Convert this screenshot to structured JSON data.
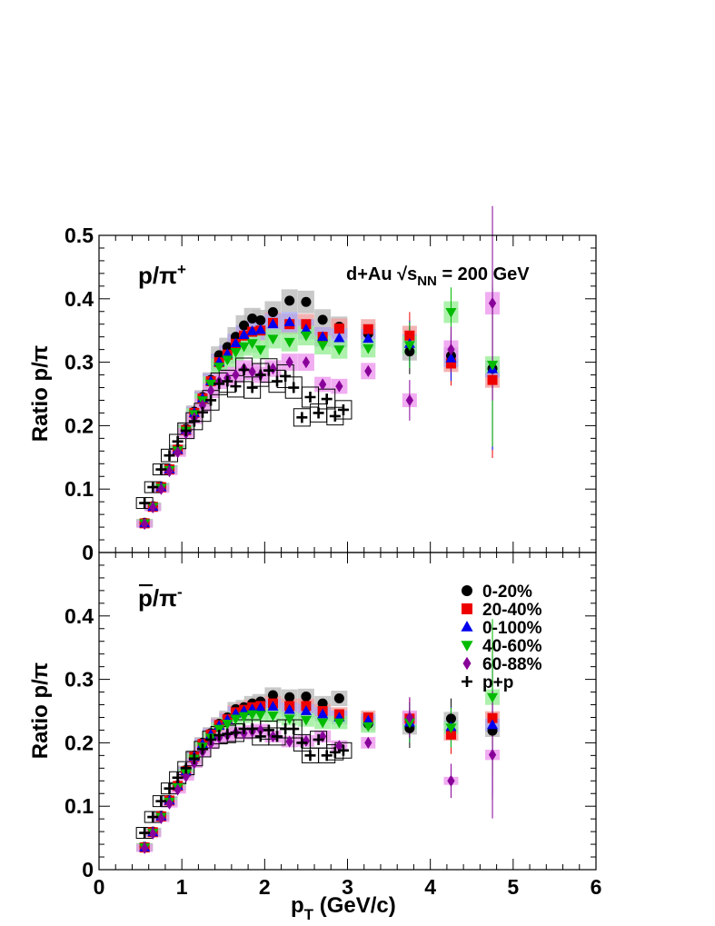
{
  "chart_data": [
    {
      "panel": "upper",
      "type": "scatter",
      "label_ratio": "p/π",
      "label_sup": "+",
      "annotation": "d+Au √s",
      "annotation_sub": "NN",
      "annotation_tail": " = 200 GeV",
      "ylabel": "Ratio p/π",
      "xlim": [
        0,
        6
      ],
      "ylim": [
        0,
        0.5
      ],
      "yticks": [
        "0",
        "0.1",
        "0.2",
        "0.3",
        "0.4",
        "0.5"
      ],
      "series": [
        {
          "name": "0-20%",
          "marker": "circle",
          "color": "#000000",
          "band": "#bbbbbb",
          "x": [
            0.55,
            0.65,
            0.75,
            0.85,
            0.95,
            1.05,
            1.15,
            1.25,
            1.35,
            1.45,
            1.55,
            1.65,
            1.75,
            1.85,
            1.95,
            2.1,
            2.3,
            2.5,
            2.7,
            2.9,
            3.25,
            3.75,
            4.25,
            4.75
          ],
          "y": [
            0.047,
            0.073,
            0.104,
            0.132,
            0.163,
            0.195,
            0.222,
            0.245,
            0.272,
            0.311,
            0.324,
            0.34,
            0.358,
            0.369,
            0.366,
            0.379,
            0.397,
            0.395,
            0.367,
            0.356,
            0.345,
            0.317,
            0.31,
            0.29
          ]
        },
        {
          "name": "20-40%",
          "marker": "square",
          "color": "#ee0000",
          "band": "#f0a0a0",
          "x": [
            0.55,
            0.65,
            0.75,
            0.85,
            0.95,
            1.05,
            1.15,
            1.25,
            1.35,
            1.45,
            1.55,
            1.65,
            1.75,
            1.85,
            1.95,
            2.1,
            2.3,
            2.5,
            2.7,
            2.9,
            3.25,
            3.75,
            4.25,
            4.75
          ],
          "y": [
            0.046,
            0.072,
            0.103,
            0.131,
            0.162,
            0.193,
            0.22,
            0.243,
            0.27,
            0.3,
            0.312,
            0.329,
            0.342,
            0.348,
            0.35,
            0.362,
            0.36,
            0.36,
            0.34,
            0.353,
            0.352,
            0.342,
            0.298,
            0.272
          ]
        },
        {
          "name": "0-100%",
          "marker": "triangle-up",
          "color": "#0000ee",
          "band": "#aaaaee",
          "x": [
            0.55,
            0.65,
            0.75,
            0.85,
            0.95,
            1.05,
            1.15,
            1.25,
            1.35,
            1.45,
            1.55,
            1.65,
            1.75,
            1.85,
            1.95,
            2.1,
            2.3,
            2.5,
            2.7,
            2.9,
            3.25,
            3.75,
            4.25,
            4.75
          ],
          "y": [
            0.046,
            0.072,
            0.103,
            0.131,
            0.162,
            0.193,
            0.22,
            0.243,
            0.27,
            0.3,
            0.313,
            0.33,
            0.343,
            0.349,
            0.351,
            0.36,
            0.363,
            0.352,
            0.34,
            0.338,
            0.337,
            0.329,
            0.306,
            0.289
          ]
        },
        {
          "name": "40-60%",
          "marker": "triangle-down",
          "color": "#00bb00",
          "band": "#99ee99",
          "x": [
            0.55,
            0.65,
            0.75,
            0.85,
            0.95,
            1.05,
            1.15,
            1.25,
            1.35,
            1.45,
            1.55,
            1.65,
            1.75,
            1.85,
            1.95,
            2.1,
            2.3,
            2.5,
            2.7,
            2.9,
            3.25,
            3.75,
            4.25,
            4.75
          ],
          "y": [
            0.046,
            0.072,
            0.102,
            0.13,
            0.161,
            0.192,
            0.218,
            0.24,
            0.266,
            0.293,
            0.304,
            0.316,
            0.325,
            0.33,
            0.32,
            0.337,
            0.332,
            0.342,
            0.327,
            0.32,
            0.322,
            0.327,
            0.379,
            0.296
          ]
        },
        {
          "name": "60-88%",
          "marker": "diamond",
          "color": "#880099",
          "band": "#ee99ee",
          "x": [
            0.55,
            0.65,
            0.75,
            0.85,
            0.95,
            1.05,
            1.15,
            1.25,
            1.35,
            1.45,
            1.55,
            1.65,
            1.75,
            1.85,
            1.95,
            2.1,
            2.3,
            2.5,
            2.7,
            2.9,
            3.25,
            3.75,
            4.25,
            4.75
          ],
          "y": [
            0.045,
            0.071,
            0.1,
            0.128,
            0.158,
            0.188,
            0.212,
            0.232,
            0.255,
            0.27,
            0.275,
            0.28,
            0.29,
            0.285,
            0.28,
            0.29,
            0.3,
            0.3,
            0.265,
            0.262,
            0.286,
            0.24,
            0.32,
            0.393
          ]
        },
        {
          "name": "p+p",
          "marker": "cross",
          "color": "#000000",
          "band": "none",
          "x": [
            0.55,
            0.65,
            0.75,
            0.85,
            0.95,
            1.05,
            1.15,
            1.25,
            1.35,
            1.45,
            1.55,
            1.65,
            1.75,
            1.85,
            1.95,
            2.05,
            2.15,
            2.25,
            2.35,
            2.45,
            2.55,
            2.65,
            2.75,
            2.85,
            2.95
          ],
          "y": [
            0.078,
            0.103,
            0.131,
            0.153,
            0.175,
            0.192,
            0.207,
            0.221,
            0.24,
            0.266,
            0.27,
            0.262,
            0.288,
            0.26,
            0.28,
            0.287,
            0.27,
            0.278,
            0.26,
            0.213,
            0.245,
            0.22,
            0.242,
            0.215,
            0.225
          ]
        }
      ]
    },
    {
      "panel": "lower",
      "type": "scatter",
      "label_ratio": "p/π",
      "label_sup": "-",
      "ylabel": "Ratio p/π",
      "xlabel": "p",
      "xlabel_sub": "T",
      "xlabel_tail": " (GeV/c)",
      "xlim": [
        0,
        6
      ],
      "ylim": [
        0,
        0.5
      ],
      "xticks": [
        "0",
        "1",
        "2",
        "3",
        "4",
        "5",
        "6"
      ],
      "yticks": [
        "0",
        "0.1",
        "0.2",
        "0.3",
        "0.4"
      ],
      "legend": {
        "placement": "top-right"
      },
      "series": [
        {
          "name": "0-20%",
          "marker": "circle",
          "color": "#000000",
          "band": "#bbbbbb",
          "x": [
            0.55,
            0.65,
            0.75,
            0.85,
            0.95,
            1.05,
            1.15,
            1.25,
            1.35,
            1.45,
            1.55,
            1.65,
            1.75,
            1.85,
            1.95,
            2.1,
            2.3,
            2.5,
            2.7,
            2.9,
            3.25,
            3.75,
            4.25,
            4.75
          ],
          "y": [
            0.036,
            0.06,
            0.085,
            0.11,
            0.133,
            0.157,
            0.18,
            0.2,
            0.215,
            0.23,
            0.24,
            0.253,
            0.256,
            0.262,
            0.265,
            0.275,
            0.272,
            0.273,
            0.262,
            0.27,
            0.23,
            0.223,
            0.238,
            0.219
          ]
        },
        {
          "name": "20-40%",
          "marker": "square",
          "color": "#ee0000",
          "band": "#f0a0a0",
          "x": [
            0.55,
            0.65,
            0.75,
            0.85,
            0.95,
            1.05,
            1.15,
            1.25,
            1.35,
            1.45,
            1.55,
            1.65,
            1.75,
            1.85,
            1.95,
            2.1,
            2.3,
            2.5,
            2.7,
            2.9,
            3.25,
            3.75,
            4.25,
            4.75
          ],
          "y": [
            0.035,
            0.059,
            0.084,
            0.109,
            0.132,
            0.155,
            0.178,
            0.198,
            0.213,
            0.228,
            0.237,
            0.248,
            0.252,
            0.256,
            0.258,
            0.262,
            0.258,
            0.258,
            0.25,
            0.245,
            0.24,
            0.238,
            0.213,
            0.239
          ]
        },
        {
          "name": "0-100%",
          "marker": "triangle-up",
          "color": "#0000ee",
          "band": "#aaaaee",
          "x": [
            0.55,
            0.65,
            0.75,
            0.85,
            0.95,
            1.05,
            1.15,
            1.25,
            1.35,
            1.45,
            1.55,
            1.65,
            1.75,
            1.85,
            1.95,
            2.1,
            2.3,
            2.5,
            2.7,
            2.9,
            3.25,
            3.75,
            4.25,
            4.75
          ],
          "y": [
            0.035,
            0.059,
            0.084,
            0.109,
            0.132,
            0.155,
            0.178,
            0.198,
            0.213,
            0.227,
            0.236,
            0.246,
            0.25,
            0.253,
            0.255,
            0.257,
            0.252,
            0.25,
            0.245,
            0.24,
            0.235,
            0.232,
            0.225,
            0.228
          ]
        },
        {
          "name": "40-60%",
          "marker": "triangle-down",
          "color": "#00bb00",
          "band": "#99ee99",
          "x": [
            0.55,
            0.65,
            0.75,
            0.85,
            0.95,
            1.05,
            1.15,
            1.25,
            1.35,
            1.45,
            1.55,
            1.65,
            1.75,
            1.85,
            1.95,
            2.1,
            2.3,
            2.5,
            2.7,
            2.9,
            3.25,
            3.75,
            4.25,
            4.75
          ],
          "y": [
            0.035,
            0.058,
            0.083,
            0.107,
            0.13,
            0.152,
            0.175,
            0.194,
            0.208,
            0.222,
            0.23,
            0.238,
            0.242,
            0.245,
            0.244,
            0.243,
            0.238,
            0.236,
            0.232,
            0.232,
            0.226,
            0.232,
            0.224,
            0.272
          ]
        },
        {
          "name": "60-88%",
          "marker": "diamond",
          "color": "#880099",
          "band": "#ee99ee",
          "x": [
            0.55,
            0.65,
            0.75,
            0.85,
            0.95,
            1.05,
            1.15,
            1.25,
            1.35,
            1.45,
            1.55,
            1.65,
            1.75,
            1.85,
            1.95,
            2.1,
            2.3,
            2.5,
            2.7,
            2.9,
            3.25,
            3.75,
            4.25,
            4.75
          ],
          "y": [
            0.034,
            0.057,
            0.081,
            0.104,
            0.126,
            0.147,
            0.168,
            0.186,
            0.199,
            0.208,
            0.212,
            0.216,
            0.215,
            0.218,
            0.22,
            0.21,
            0.202,
            0.203,
            0.21,
            0.195,
            0.2,
            0.24,
            0.14,
            0.181
          ]
        },
        {
          "name": "p+p",
          "marker": "cross",
          "color": "#000000",
          "band": "none",
          "x": [
            0.55,
            0.65,
            0.75,
            0.85,
            0.95,
            1.05,
            1.15,
            1.25,
            1.35,
            1.45,
            1.55,
            1.65,
            1.75,
            1.85,
            1.95,
            2.05,
            2.15,
            2.25,
            2.35,
            2.45,
            2.55,
            2.65,
            2.75,
            2.85,
            2.95
          ],
          "y": [
            0.058,
            0.083,
            0.108,
            0.128,
            0.145,
            0.16,
            0.175,
            0.19,
            0.205,
            0.212,
            0.214,
            0.216,
            0.222,
            0.222,
            0.21,
            0.22,
            0.21,
            0.222,
            0.222,
            0.2,
            0.18,
            0.205,
            0.18,
            0.185,
            0.188
          ]
        }
      ]
    }
  ]
}
